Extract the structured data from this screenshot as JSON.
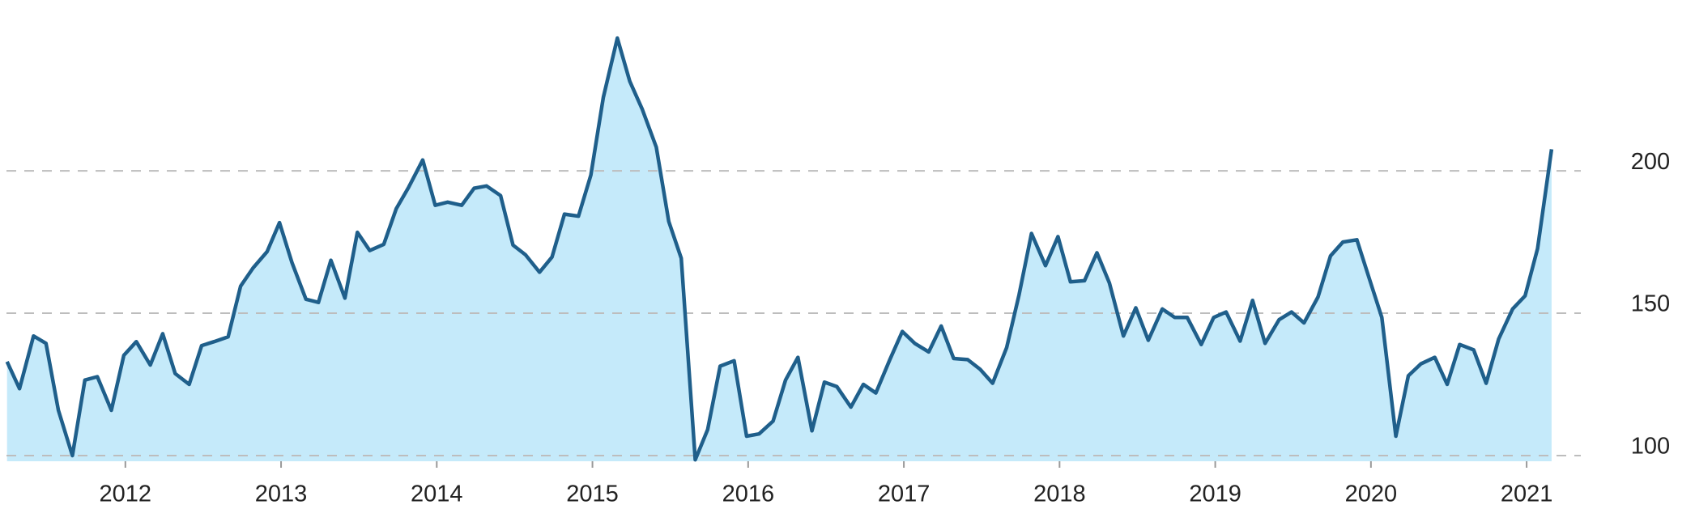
{
  "chart_data": {
    "type": "area",
    "x": [
      2011.24,
      2011.32,
      2011.41,
      2011.49,
      2011.57,
      2011.66,
      2011.74,
      2011.82,
      2011.91,
      2011.99,
      2012.07,
      2012.16,
      2012.24,
      2012.32,
      2012.41,
      2012.49,
      2012.57,
      2012.66,
      2012.74,
      2012.82,
      2012.91,
      2012.99,
      2013.07,
      2013.16,
      2013.24,
      2013.32,
      2013.41,
      2013.49,
      2013.57,
      2013.66,
      2013.74,
      2013.82,
      2013.91,
      2013.99,
      2014.07,
      2014.16,
      2014.24,
      2014.32,
      2014.41,
      2014.49,
      2014.57,
      2014.66,
      2014.74,
      2014.82,
      2014.91,
      2014.99,
      2015.07,
      2015.16,
      2015.24,
      2015.32,
      2015.41,
      2015.49,
      2015.57,
      2015.66,
      2015.74,
      2015.82,
      2015.91,
      2015.99,
      2016.07,
      2016.16,
      2016.24,
      2016.32,
      2016.41,
      2016.49,
      2016.57,
      2016.66,
      2016.74,
      2016.82,
      2016.91,
      2016.99,
      2017.07,
      2017.16,
      2017.24,
      2017.32,
      2017.41,
      2017.49,
      2017.57,
      2017.66,
      2017.74,
      2017.82,
      2017.91,
      2017.99,
      2018.07,
      2018.16,
      2018.24,
      2018.32,
      2018.41,
      2018.49,
      2018.57,
      2018.66,
      2018.74,
      2018.82,
      2018.91,
      2018.99,
      2019.07,
      2019.16,
      2019.24,
      2019.32,
      2019.41,
      2019.49,
      2019.57,
      2019.66,
      2019.74,
      2019.82,
      2019.91,
      2019.99,
      2020.07,
      2020.16,
      2020.24,
      2020.32,
      2020.41,
      2020.49,
      2020.57,
      2020.66,
      2020.74,
      2020.82,
      2020.91,
      2020.99,
      2021.07,
      2021.16
    ],
    "series": [
      {
        "color": "#1f5f8b",
        "fill": "#c5eafa",
        "values": [
          133,
          123.5,
          142,
          139.4,
          115.9,
          100,
          126.5,
          127.7,
          115.9,
          135.2,
          140,
          131.8,
          142.8,
          128.8,
          125,
          138.6,
          140,
          141.7,
          159.5,
          165.9,
          171.6,
          181.8,
          167.8,
          154.9,
          153.8,
          168.6,
          155.3,
          178.4,
          172,
          174.2,
          186.7,
          194.3,
          203.8,
          187.9,
          189,
          187.9,
          193.9,
          194.7,
          191.3,
          173.9,
          170.5,
          164.4,
          169.7,
          184.8,
          184.1,
          198.5,
          225.8,
          246.6,
          231.4,
          221.6,
          208.3,
          182.2,
          169.3,
          98.5,
          109.1,
          131.4,
          133.3,
          106.8,
          107.6,
          112.1,
          126.5,
          134.5,
          108.7,
          125.8,
          124.2,
          117,
          125,
          122,
          133.7,
          143.6,
          139.4,
          136.4,
          145.5,
          134.1,
          133.7,
          130.3,
          125.4,
          137.9,
          156.4,
          178,
          166.7,
          176.9,
          161,
          161.4,
          171.2,
          160.6,
          142,
          151.9,
          140.5,
          151.5,
          148.5,
          148.5,
          139,
          148.5,
          150.4,
          140.2,
          154.5,
          139.4,
          147.7,
          150.4,
          146.6,
          155.7,
          170.1,
          175,
          175.8,
          162.1,
          148.5,
          106.8,
          128,
          132.2,
          134.5,
          125,
          139,
          137.1,
          125.4,
          140.9,
          151.5,
          156.1,
          172.7,
          207.6
        ]
      }
    ],
    "xlim": [
      2011.2,
      2021.4
    ],
    "xticks": [
      2012,
      2013,
      2014,
      2015,
      2016,
      2017,
      2018,
      2019,
      2020,
      2021
    ],
    "ylim": [
      98,
      260
    ],
    "yticks": [
      100,
      150,
      200
    ],
    "grid": true
  }
}
